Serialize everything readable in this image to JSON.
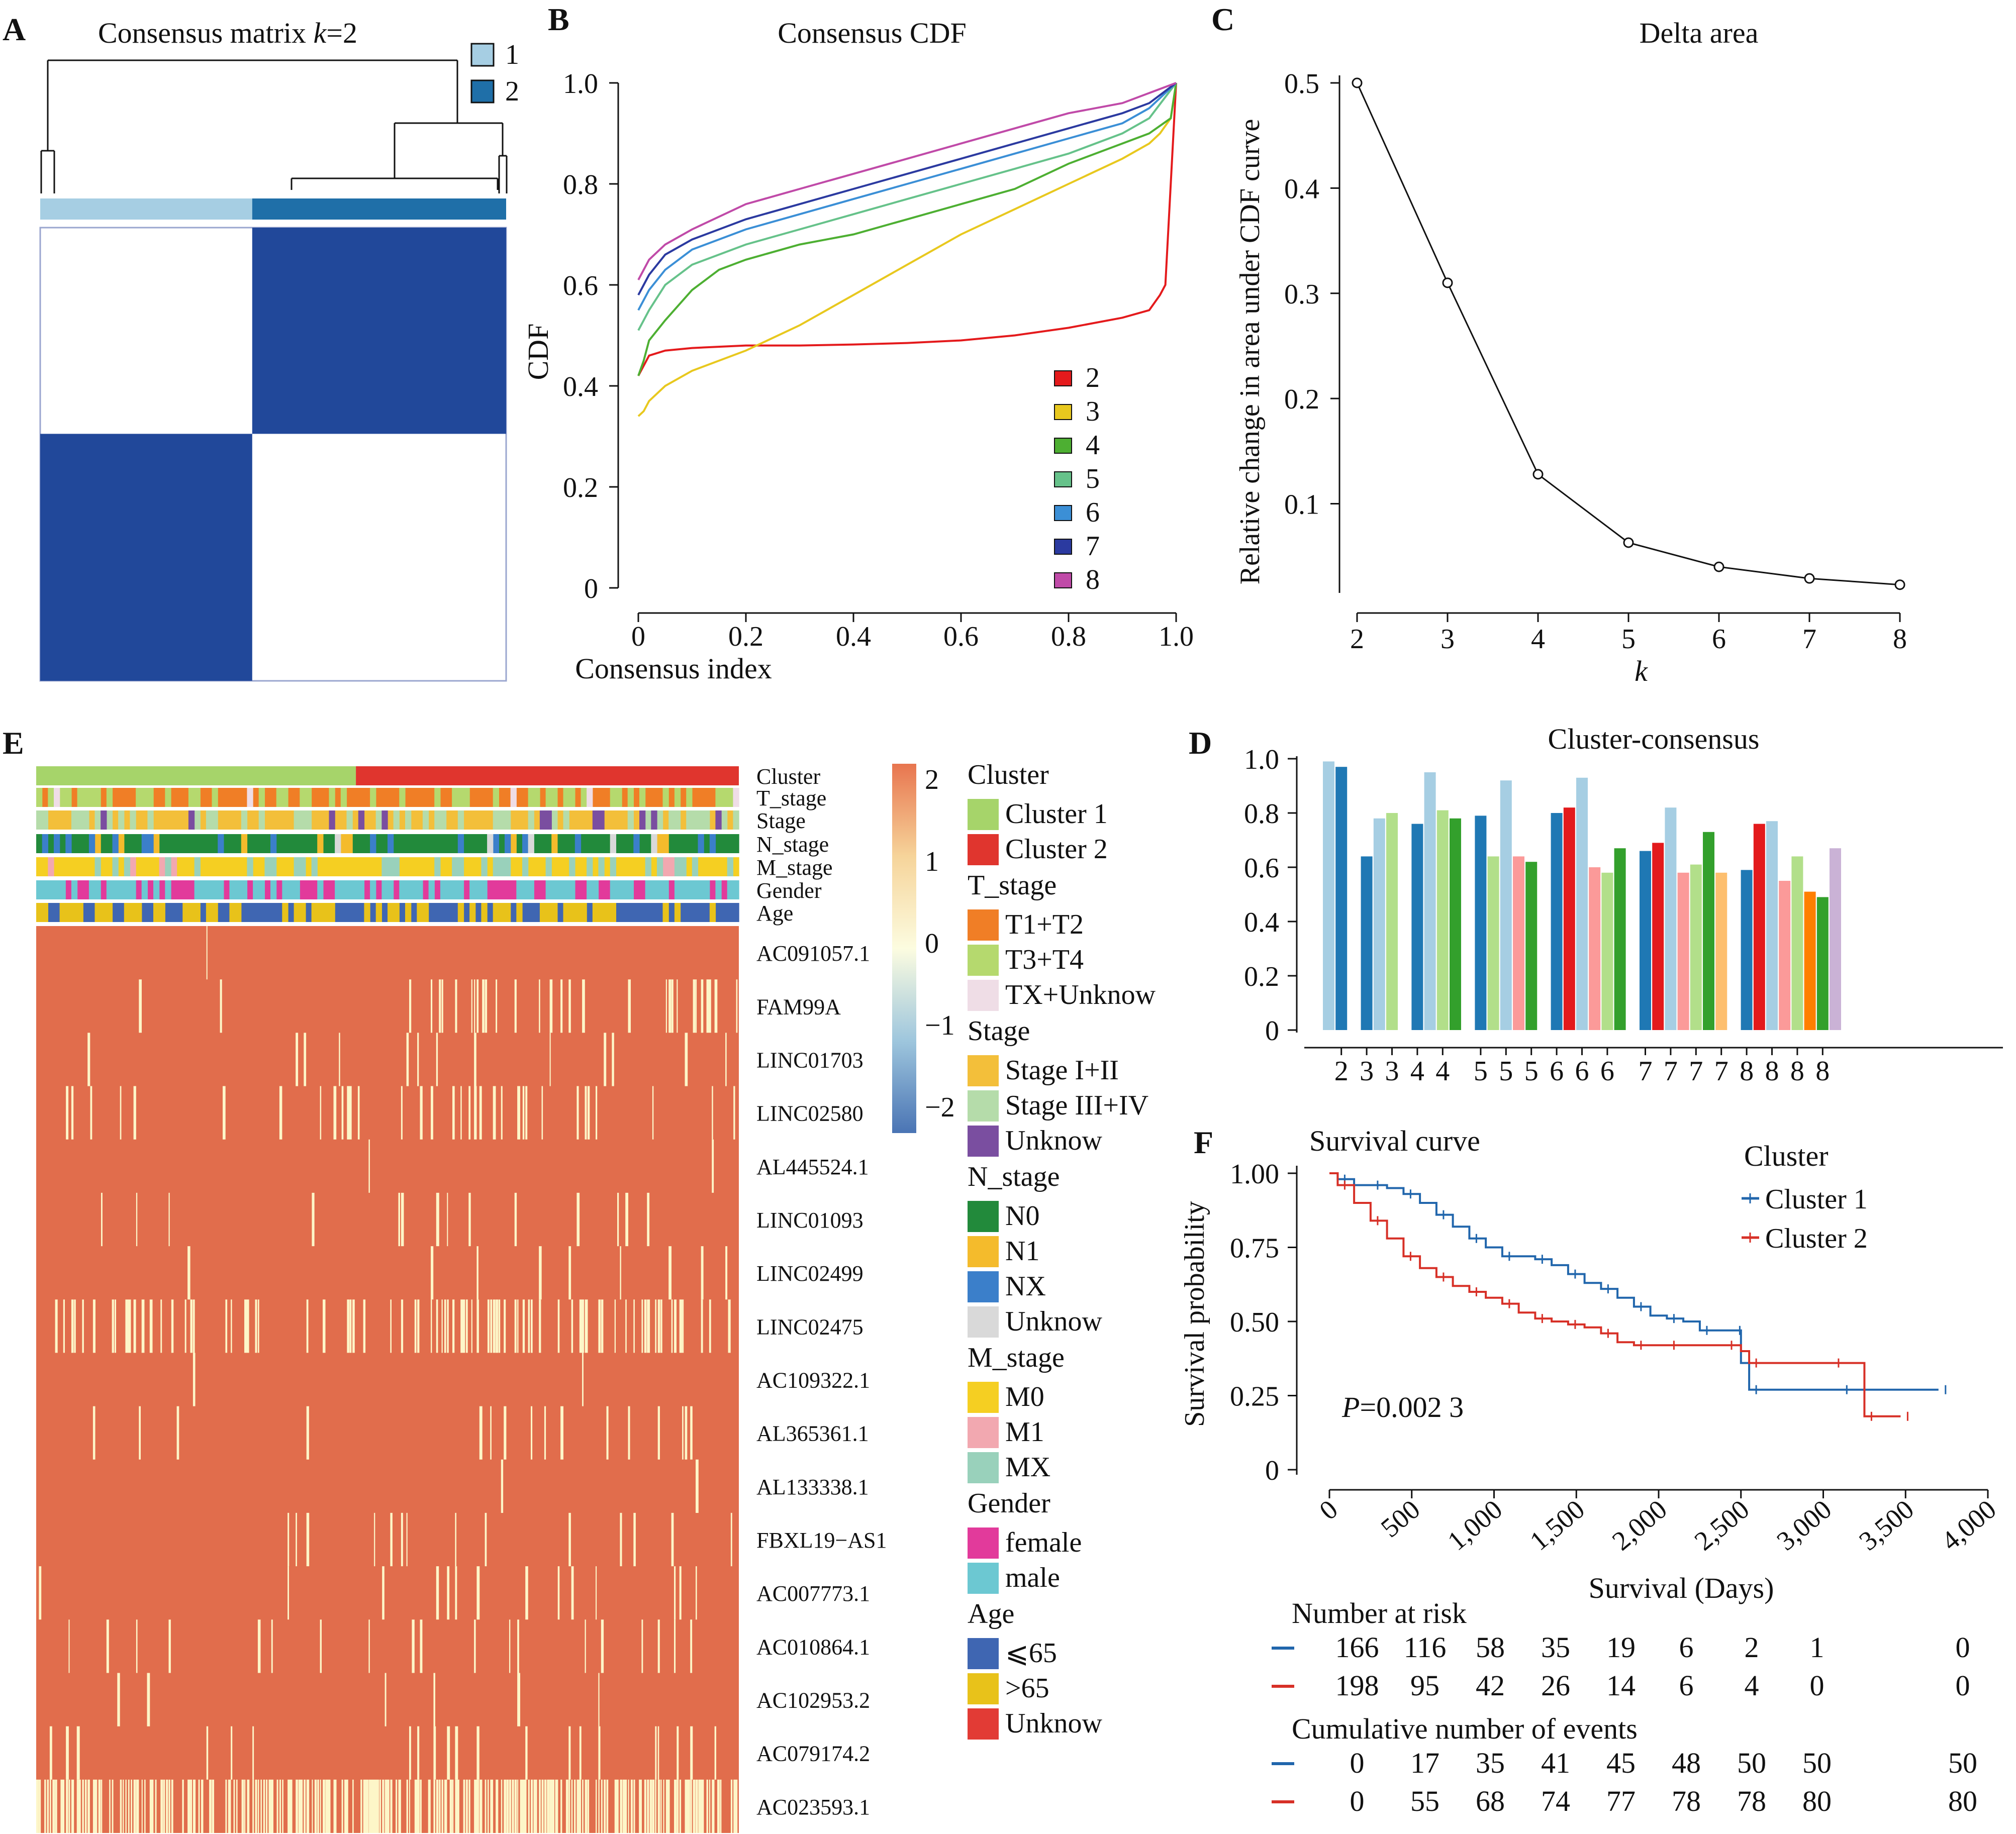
{
  "colors": {
    "clust1": "#a6cee3",
    "clust2": "#1f6fa8",
    "cons_blue": "#21489a",
    "heat_hi": "#e16d4c",
    "heat_lo": "#fdf6c8",
    "axis": "#111111",
    "km1": "#2166ac",
    "km2": "#d73027"
  },
  "panelA": {
    "label": "A",
    "title_pre": "Consensus matrix ",
    "title_k": "k",
    "title_post": "=2",
    "legend": [
      "1",
      "2"
    ],
    "legend_colors": [
      "#a6cee3",
      "#1f6fa8"
    ],
    "cluster_fraction": [
      0.455,
      0.545
    ]
  },
  "panelB": {
    "label": "B",
    "chart_data": {
      "type": "line",
      "title": "Consensus CDF",
      "xlabel": "Consensus index",
      "ylabel": "CDF",
      "xlim": [
        0,
        1
      ],
      "ylim": [
        0,
        1
      ],
      "xticks": [
        "0",
        "0.2",
        "0.4",
        "0.6",
        "0.8",
        "1.0"
      ],
      "yticks": [
        "0",
        "0.2",
        "0.4",
        "0.6",
        "0.8",
        "1.0"
      ],
      "legend_position": "bottom-right",
      "series": [
        {
          "name": "2",
          "color": "#e41a1c",
          "x": [
            0,
            0.01,
            0.02,
            0.05,
            0.1,
            0.2,
            0.3,
            0.4,
            0.5,
            0.6,
            0.7,
            0.8,
            0.9,
            0.95,
            0.97,
            0.98,
            0.99,
            1.0
          ],
          "y": [
            0.42,
            0.44,
            0.46,
            0.47,
            0.475,
            0.48,
            0.48,
            0.482,
            0.485,
            0.49,
            0.5,
            0.515,
            0.535,
            0.55,
            0.58,
            0.6,
            0.8,
            1.0
          ]
        },
        {
          "name": "3",
          "color": "#e8c81e",
          "x": [
            0,
            0.01,
            0.02,
            0.05,
            0.1,
            0.2,
            0.3,
            0.4,
            0.5,
            0.6,
            0.7,
            0.8,
            0.9,
            0.95,
            0.97,
            0.99,
            1.0
          ],
          "y": [
            0.34,
            0.35,
            0.37,
            0.4,
            0.43,
            0.47,
            0.52,
            0.58,
            0.64,
            0.7,
            0.75,
            0.8,
            0.85,
            0.88,
            0.9,
            0.93,
            1.0
          ]
        },
        {
          "name": "4",
          "color": "#4daf32",
          "x": [
            0,
            0.01,
            0.02,
            0.05,
            0.1,
            0.15,
            0.2,
            0.3,
            0.4,
            0.5,
            0.6,
            0.7,
            0.8,
            0.9,
            0.95,
            0.99,
            1.0
          ],
          "y": [
            0.42,
            0.45,
            0.49,
            0.53,
            0.59,
            0.63,
            0.65,
            0.68,
            0.7,
            0.73,
            0.76,
            0.79,
            0.84,
            0.88,
            0.9,
            0.93,
            1.0
          ]
        },
        {
          "name": "5",
          "color": "#66c28a",
          "x": [
            0,
            0.01,
            0.02,
            0.05,
            0.1,
            0.2,
            0.3,
            0.4,
            0.5,
            0.6,
            0.7,
            0.8,
            0.9,
            0.95,
            1.0
          ],
          "y": [
            0.51,
            0.53,
            0.55,
            0.6,
            0.64,
            0.68,
            0.71,
            0.74,
            0.77,
            0.8,
            0.83,
            0.86,
            0.9,
            0.93,
            1.0
          ]
        },
        {
          "name": "6",
          "color": "#3b8fd6",
          "x": [
            0,
            0.01,
            0.02,
            0.05,
            0.1,
            0.2,
            0.3,
            0.4,
            0.5,
            0.6,
            0.7,
            0.8,
            0.9,
            0.95,
            1.0
          ],
          "y": [
            0.55,
            0.57,
            0.59,
            0.63,
            0.67,
            0.71,
            0.74,
            0.77,
            0.8,
            0.83,
            0.86,
            0.89,
            0.92,
            0.95,
            1.0
          ]
        },
        {
          "name": "7",
          "color": "#2b3aa0",
          "x": [
            0,
            0.01,
            0.02,
            0.05,
            0.1,
            0.2,
            0.3,
            0.4,
            0.5,
            0.6,
            0.7,
            0.8,
            0.9,
            0.95,
            1.0
          ],
          "y": [
            0.58,
            0.6,
            0.62,
            0.66,
            0.69,
            0.73,
            0.76,
            0.79,
            0.82,
            0.85,
            0.88,
            0.91,
            0.94,
            0.96,
            1.0
          ]
        },
        {
          "name": "8",
          "color": "#c04aa8",
          "x": [
            0,
            0.01,
            0.02,
            0.05,
            0.1,
            0.2,
            0.3,
            0.4,
            0.5,
            0.6,
            0.7,
            0.8,
            0.9,
            0.95,
            1.0
          ],
          "y": [
            0.61,
            0.63,
            0.65,
            0.68,
            0.71,
            0.76,
            0.79,
            0.82,
            0.85,
            0.88,
            0.91,
            0.94,
            0.96,
            0.98,
            1.0
          ]
        }
      ]
    }
  },
  "panelC": {
    "label": "C",
    "chart_data": {
      "type": "line",
      "title": "Delta area",
      "xlabel": "k",
      "ylabel": "Relative change in area under CDF curve",
      "x": [
        2,
        3,
        4,
        5,
        6,
        7,
        8
      ],
      "y": [
        0.5,
        0.31,
        0.128,
        0.063,
        0.04,
        0.029,
        0.023
      ],
      "xlim": [
        2,
        8
      ],
      "ylim": [
        0.02,
        0.5
      ],
      "xticks": [
        "2",
        "3",
        "4",
        "5",
        "6",
        "7",
        "8"
      ],
      "yticks": [
        "0.1",
        "0.2",
        "0.3",
        "0.4",
        "0.5"
      ]
    }
  },
  "panelD": {
    "label": "D",
    "chart_data": {
      "type": "bar",
      "title": "Cluster-consensus",
      "ylim": [
        0,
        1
      ],
      "yticks": [
        "0",
        "0.2",
        "0.4",
        "0.6",
        "0.8",
        "1.0"
      ],
      "groups": [
        {
          "k": "2",
          "bars": [
            {
              "label": "",
              "value": 0.99,
              "color": "#a6cee3"
            },
            {
              "label": "2",
              "value": 0.97,
              "color": "#1f78b4"
            }
          ]
        },
        {
          "k": "3",
          "bars": [
            {
              "label": "3",
              "value": 0.64,
              "color": "#1f78b4"
            },
            {
              "label": "",
              "value": 0.78,
              "color": "#a6cee3"
            },
            {
              "label": "3",
              "value": 0.8,
              "color": "#b2df8a"
            }
          ]
        },
        {
          "k": "4",
          "bars": [
            {
              "label": "4",
              "value": 0.76,
              "color": "#1f78b4"
            },
            {
              "label": "",
              "value": 0.95,
              "color": "#a6cee3"
            },
            {
              "label": "4",
              "value": 0.81,
              "color": "#b2df8a"
            },
            {
              "label": "",
              "value": 0.78,
              "color": "#33a02c"
            }
          ]
        },
        {
          "k": "5",
          "bars": [
            {
              "label": "5",
              "value": 0.79,
              "color": "#1f78b4"
            },
            {
              "label": "",
              "value": 0.64,
              "color": "#b2df8a"
            },
            {
              "label": "5",
              "value": 0.92,
              "color": "#a6cee3"
            },
            {
              "label": "",
              "value": 0.64,
              "color": "#fb9a99"
            },
            {
              "label": "5",
              "value": 0.62,
              "color": "#33a02c"
            }
          ]
        },
        {
          "k": "6",
          "bars": [
            {
              "label": "6",
              "value": 0.8,
              "color": "#1f78b4"
            },
            {
              "label": "",
              "value": 0.82,
              "color": "#e31a1c"
            },
            {
              "label": "6",
              "value": 0.93,
              "color": "#a6cee3"
            },
            {
              "label": "",
              "value": 0.6,
              "color": "#fb9a99"
            },
            {
              "label": "6",
              "value": 0.58,
              "color": "#b2df8a"
            },
            {
              "label": "",
              "value": 0.67,
              "color": "#33a02c"
            }
          ]
        },
        {
          "k": "7",
          "bars": [
            {
              "label": "7",
              "value": 0.66,
              "color": "#1f78b4"
            },
            {
              "label": "",
              "value": 0.69,
              "color": "#e31a1c"
            },
            {
              "label": "7",
              "value": 0.82,
              "color": "#a6cee3"
            },
            {
              "label": "",
              "value": 0.58,
              "color": "#fb9a99"
            },
            {
              "label": "7",
              "value": 0.61,
              "color": "#b2df8a"
            },
            {
              "label": "",
              "value": 0.73,
              "color": "#33a02c"
            },
            {
              "label": "7",
              "value": 0.58,
              "color": "#fdbf6f"
            }
          ]
        },
        {
          "k": "8",
          "bars": [
            {
              "label": "8",
              "value": 0.59,
              "color": "#1f78b4"
            },
            {
              "label": "",
              "value": 0.76,
              "color": "#e31a1c"
            },
            {
              "label": "8",
              "value": 0.77,
              "color": "#a6cee3"
            },
            {
              "label": "",
              "value": 0.55,
              "color": "#fb9a99"
            },
            {
              "label": "8",
              "value": 0.64,
              "color": "#b2df8a"
            },
            {
              "label": "",
              "value": 0.51,
              "color": "#ff7f00"
            },
            {
              "label": "8",
              "value": 0.49,
              "color": "#33a02c"
            },
            {
              "label": "",
              "value": 0.67,
              "color": "#cab2d6"
            }
          ]
        }
      ]
    }
  },
  "panelE": {
    "label": "E",
    "annotation_rows": [
      "Cluster",
      "T_stage",
      "Stage",
      "N_stage",
      "M_stage",
      "Gender",
      "Age"
    ],
    "genes": [
      "AC091057.1",
      "FAM99A",
      "LINC01703",
      "LINC02580",
      "AL445524.1",
      "LINC01093",
      "LINC02499",
      "LINC02475",
      "AC109322.1",
      "AL365361.1",
      "AL133338.1",
      "FBXL19−AS1",
      "AC007773.1",
      "AC010864.1",
      "AC102953.2",
      "AC079174.2",
      "AC023593.1"
    ],
    "colorbar": {
      "ticks": [
        "2",
        "1",
        "0",
        "−1",
        "−2"
      ]
    },
    "legends": [
      {
        "title": "Cluster",
        "items": [
          {
            "label": "Cluster 1",
            "color": "#a6d46a"
          },
          {
            "label": "Cluster 2",
            "color": "#e0352e"
          }
        ]
      },
      {
        "title": "T_stage",
        "items": [
          {
            "label": "T1+T2",
            "color": "#f07e26"
          },
          {
            "label": "T3+T4",
            "color": "#b5d96e"
          },
          {
            "label": "TX+Unknow",
            "color": "#efdde6"
          }
        ]
      },
      {
        "title": "Stage",
        "items": [
          {
            "label": "Stage I+II",
            "color": "#f3bf3a"
          },
          {
            "label": "Stage III+IV",
            "color": "#b5dcaa"
          },
          {
            "label": "Unknow",
            "color": "#7a4ea0"
          }
        ]
      },
      {
        "title": "N_stage",
        "items": [
          {
            "label": "N0",
            "color": "#228a3b"
          },
          {
            "label": "N1",
            "color": "#f4bb2c"
          },
          {
            "label": "NX",
            "color": "#3b7fca"
          },
          {
            "label": "Unknow",
            "color": "#d9d9d9"
          }
        ]
      },
      {
        "title": "M_stage",
        "items": [
          {
            "label": "M0",
            "color": "#f5cf22"
          },
          {
            "label": "M1",
            "color": "#f2a8b0"
          },
          {
            "label": "MX",
            "color": "#99d1bb"
          }
        ]
      },
      {
        "title": "Gender",
        "items": [
          {
            "label": "female",
            "color": "#e23a9b"
          },
          {
            "label": "male",
            "color": "#6cc8d2"
          }
        ]
      },
      {
        "title": "Age",
        "items": [
          {
            "label": "⩽65",
            "color": "#3f66b2"
          },
          {
            "label": ">65",
            "color": "#e8c21a"
          },
          {
            "label": "Unknow",
            "color": "#e23b35"
          }
        ]
      }
    ]
  },
  "panelF": {
    "label": "F",
    "chart_data": {
      "type": "line",
      "title": "Survival curve",
      "xlabel": "Survival (Days)",
      "ylabel": "Survival probability",
      "xlim": [
        0,
        4000
      ],
      "ylim": [
        0,
        1
      ],
      "xticks": [
        "0",
        "500",
        "1,000",
        "1,500",
        "2,000",
        "2,500",
        "3,000",
        "3,500",
        "4,000"
      ],
      "yticks": [
        "0",
        "0.25",
        "0.50",
        "0.75",
        "1.00"
      ],
      "legend_title": "Cluster",
      "p_label": "P",
      "p_value": "=0.002 3",
      "series": [
        {
          "name": "Cluster 1",
          "color": "#2166ac",
          "x": [
            0,
            50,
            150,
            250,
            350,
            450,
            550,
            650,
            750,
            850,
            950,
            1050,
            1150,
            1250,
            1350,
            1450,
            1550,
            1650,
            1750,
            1850,
            1950,
            2050,
            2150,
            2250,
            2350,
            2450,
            2500,
            2550,
            2800,
            3100,
            3500,
            3700
          ],
          "y": [
            1.0,
            0.98,
            0.96,
            0.96,
            0.95,
            0.93,
            0.9,
            0.86,
            0.82,
            0.78,
            0.75,
            0.72,
            0.72,
            0.71,
            0.69,
            0.66,
            0.63,
            0.61,
            0.58,
            0.55,
            0.52,
            0.51,
            0.5,
            0.47,
            0.47,
            0.47,
            0.36,
            0.27,
            0.27,
            0.27,
            0.27,
            0.27
          ]
        },
        {
          "name": "Cluster 2",
          "color": "#d73027",
          "x": [
            0,
            50,
            150,
            250,
            350,
            450,
            550,
            650,
            750,
            850,
            950,
            1050,
            1150,
            1250,
            1350,
            1450,
            1550,
            1650,
            1750,
            1850,
            1950,
            2050,
            2200,
            2400,
            2500,
            2550,
            2800,
            3050,
            3150,
            3250,
            3350,
            3470
          ],
          "y": [
            1.0,
            0.96,
            0.9,
            0.84,
            0.78,
            0.72,
            0.68,
            0.65,
            0.62,
            0.6,
            0.58,
            0.56,
            0.53,
            0.51,
            0.5,
            0.49,
            0.48,
            0.46,
            0.43,
            0.42,
            0.42,
            0.42,
            0.42,
            0.42,
            0.4,
            0.36,
            0.36,
            0.36,
            0.36,
            0.18,
            0.18,
            0.18
          ]
        }
      ],
      "risk_table": {
        "title": "Number at risk",
        "rows": [
          [
            "166",
            "116",
            "58",
            "35",
            "19",
            "6",
            "2",
            "1",
            "0"
          ],
          [
            "198",
            "95",
            "42",
            "26",
            "14",
            "6",
            "4",
            "0",
            "0"
          ]
        ]
      },
      "events_table": {
        "title": "Cumulative number of events",
        "rows": [
          [
            "0",
            "17",
            "35",
            "41",
            "45",
            "48",
            "50",
            "50",
            "50"
          ],
          [
            "0",
            "55",
            "68",
            "74",
            "77",
            "78",
            "78",
            "80",
            "80"
          ]
        ]
      }
    }
  }
}
